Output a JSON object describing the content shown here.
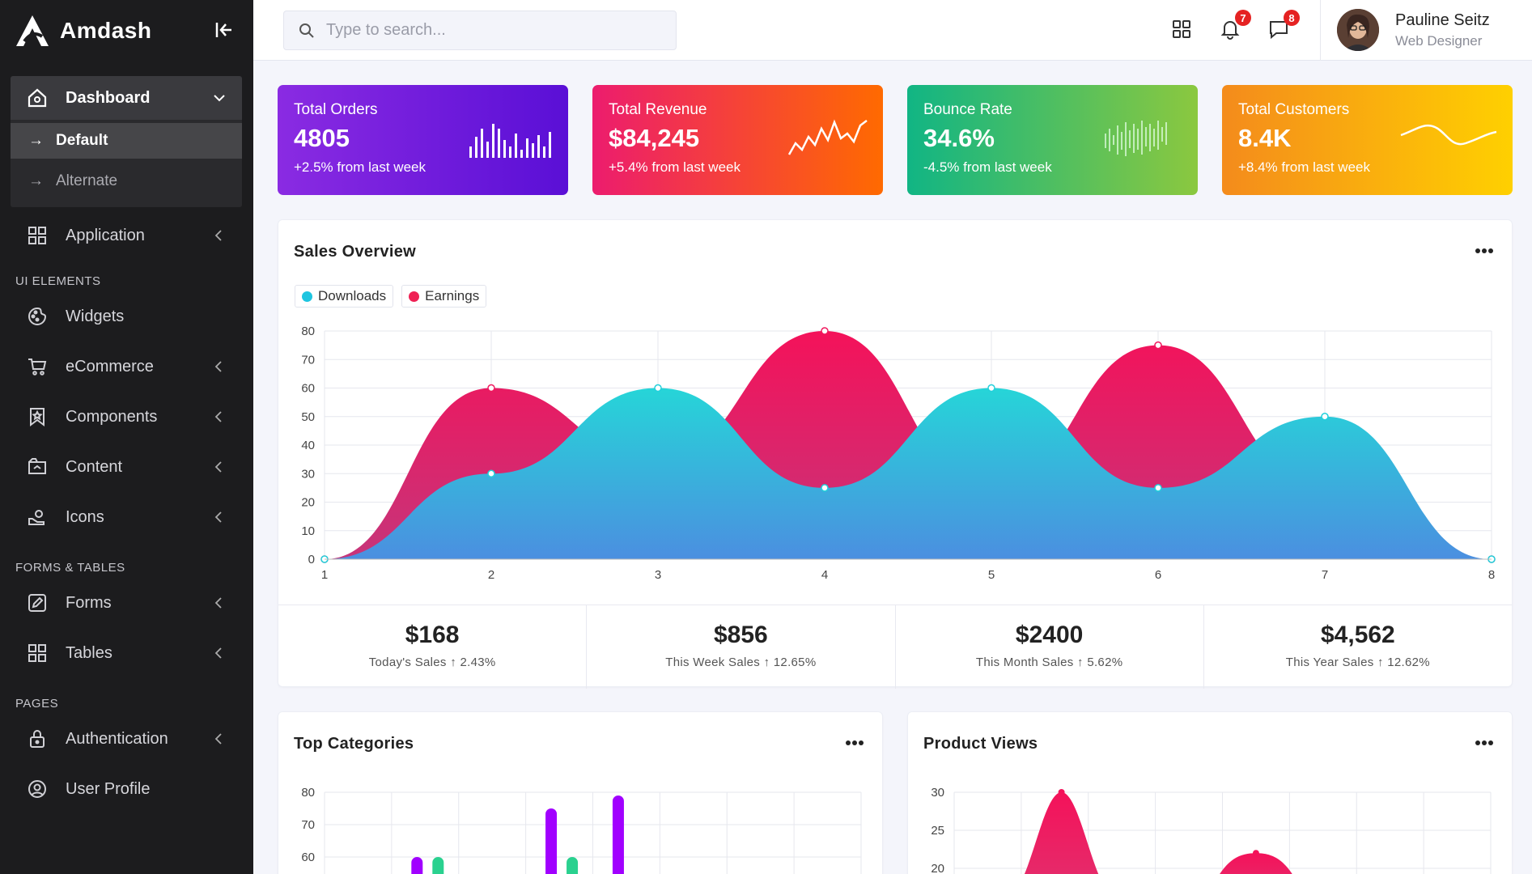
{
  "brand": {
    "name": "Amdash"
  },
  "sidebar": {
    "dashboard": "Dashboard",
    "sub": [
      "Default",
      "Alternate"
    ],
    "application": "Application",
    "section_ui": "UI ELEMENTS",
    "widgets": "Widgets",
    "ecommerce": "eCommerce",
    "components": "Components",
    "content": "Content",
    "icons": "Icons",
    "section_forms": "FORMS & TABLES",
    "forms": "Forms",
    "tables": "Tables",
    "section_pages": "PAGES",
    "authentication": "Authentication",
    "user_profile": "User Profile"
  },
  "topbar": {
    "search_placeholder": "Type to search...",
    "notifications_count": "7",
    "messages_count": "8",
    "user_name": "Pauline Seitz",
    "user_role": "Web Designer"
  },
  "stats": [
    {
      "title": "Total Orders",
      "value": "4805",
      "delta": "+2.5% from last week",
      "color_from": "#8a2be2",
      "color_to": "#5a0fd6"
    },
    {
      "title": "Total Revenue",
      "value": "$84,245",
      "delta": "+5.4% from last week",
      "color_from": "#ec1c6e",
      "color_to": "#ff6a00"
    },
    {
      "title": "Bounce Rate",
      "value": "34.6%",
      "delta": "-4.5% from last week",
      "color_from": "#11b584",
      "color_to": "#8bc83f"
    },
    {
      "title": "Total Customers",
      "value": "8.4K",
      "delta": "+8.4% from last week",
      "color_from": "#f48b1c",
      "color_to": "#ffd000"
    }
  ],
  "sales_overview": {
    "title": "Sales Overview",
    "legend": [
      "Downloads",
      "Earnings"
    ],
    "summary": [
      {
        "amount": "$168",
        "label": "Today's Sales",
        "change": "2.43%"
      },
      {
        "amount": "$856",
        "label": "This Week Sales",
        "change": "12.65%"
      },
      {
        "amount": "$2400",
        "label": "This Month Sales",
        "change": "5.62%"
      },
      {
        "amount": "$4,562",
        "label": "This Year Sales",
        "change": "12.62%"
      }
    ]
  },
  "top_categories": {
    "title": "Top Categories"
  },
  "product_views": {
    "title": "Product Views"
  },
  "chart_data": [
    {
      "type": "area",
      "title": "Sales Overview",
      "x": [
        1,
        2,
        3,
        4,
        5,
        6,
        7,
        8
      ],
      "ylim": [
        0,
        80
      ],
      "yticks": [
        0,
        10,
        20,
        30,
        40,
        50,
        60,
        70,
        80
      ],
      "series": [
        {
          "name": "Earnings",
          "values": [
            0,
            60,
            35,
            80,
            25,
            75,
            25,
            0
          ],
          "color": "#f0195e"
        },
        {
          "name": "Downloads",
          "values": [
            0,
            30,
            60,
            25,
            60,
            25,
            50,
            0
          ],
          "color": "#22d0db"
        }
      ]
    },
    {
      "type": "bar",
      "title": "Top Categories",
      "ylim_visible": [
        60,
        80
      ],
      "yticks": [
        60,
        70,
        80
      ],
      "visible_bars": [
        {
          "group": 2,
          "series": 1,
          "value": 60,
          "color": "#a100ff"
        },
        {
          "group": 2,
          "series": 2,
          "value": 60,
          "color": "#2ad18f"
        },
        {
          "group": 4,
          "series": 1,
          "value": 75,
          "color": "#a100ff"
        },
        {
          "group": 4,
          "series": 2,
          "value": 60,
          "color": "#2ad18f"
        },
        {
          "group": 5,
          "series": 1,
          "value": 79,
          "color": "#a100ff"
        }
      ]
    },
    {
      "type": "area",
      "title": "Product Views",
      "yticks": [
        20,
        25,
        30
      ],
      "visible_peaks": [
        30,
        22
      ]
    }
  ]
}
